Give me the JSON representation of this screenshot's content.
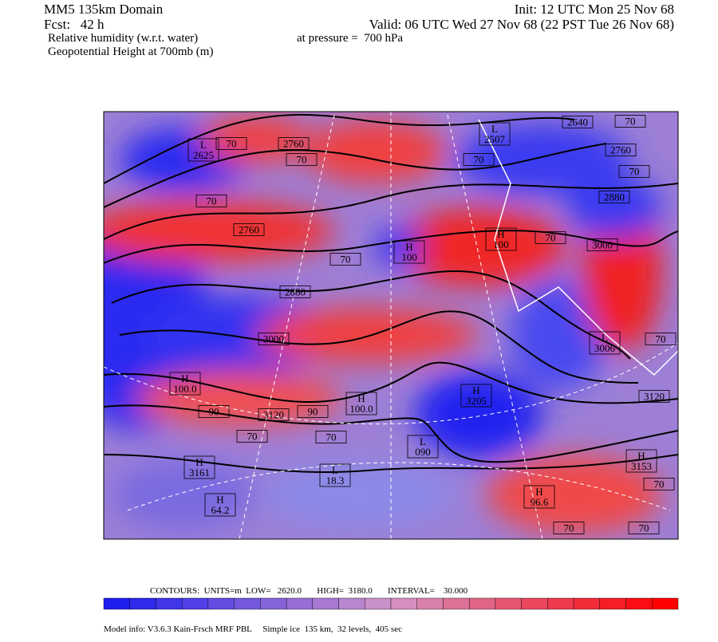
{
  "header": {
    "title": "MM5 135km Domain",
    "fcst": "Fcst:   42 h",
    "field1": "Relative humidity (w.r.t. water)",
    "pressure": "at pressure =  700 hPa",
    "field2": "Geopotential Height at 700mb (m)",
    "init": "Init: 12 UTC Mon 25 Nov 68",
    "valid": "Valid: 06 UTC Wed 27 Nov 68 (22 PST Tue 26 Nov 68)"
  },
  "map": {
    "labels": [
      [
        "L",
        "2625"
      ],
      [
        "70"
      ],
      [
        "2760"
      ],
      [
        "70"
      ],
      [
        "2640"
      ],
      [
        "L",
        "2507"
      ],
      [
        "70"
      ],
      [
        "2760"
      ],
      [
        "70"
      ],
      [
        "70"
      ],
      [
        "2880"
      ],
      [
        "70"
      ],
      [
        "2760"
      ],
      [
        "3000"
      ],
      [
        "70"
      ],
      [
        "70"
      ],
      [
        "H",
        "100"
      ],
      [
        "H",
        "100"
      ],
      [
        "2880"
      ],
      [
        "3000"
      ],
      [
        "L",
        "3006"
      ],
      [
        "70"
      ],
      [
        "H",
        "100.0"
      ],
      [
        "90"
      ],
      [
        "3120"
      ],
      [
        "90"
      ],
      [
        "H",
        "100.0"
      ],
      [
        "70"
      ],
      [
        "70"
      ],
      [
        "H",
        "3205"
      ],
      [
        "3120"
      ],
      [
        "L",
        "090"
      ],
      [
        "H",
        "3161"
      ],
      [
        "L",
        "18.3"
      ],
      [
        "H",
        "3153"
      ],
      [
        "70"
      ],
      [
        "H",
        "64.2"
      ],
      [
        "H",
        "96.6"
      ],
      [
        "70"
      ],
      [
        "70"
      ]
    ]
  },
  "footer": {
    "contours": "CONTOURS:  UNITS=m  LOW=   2620.0       HIGH=  3180.0       INTERVAL=    30.000",
    "model": "Model info: V3.6.3 Kain-Frsch MRF PBL     Simple ice  135 km,  32 levels,  405 sec"
  }
}
